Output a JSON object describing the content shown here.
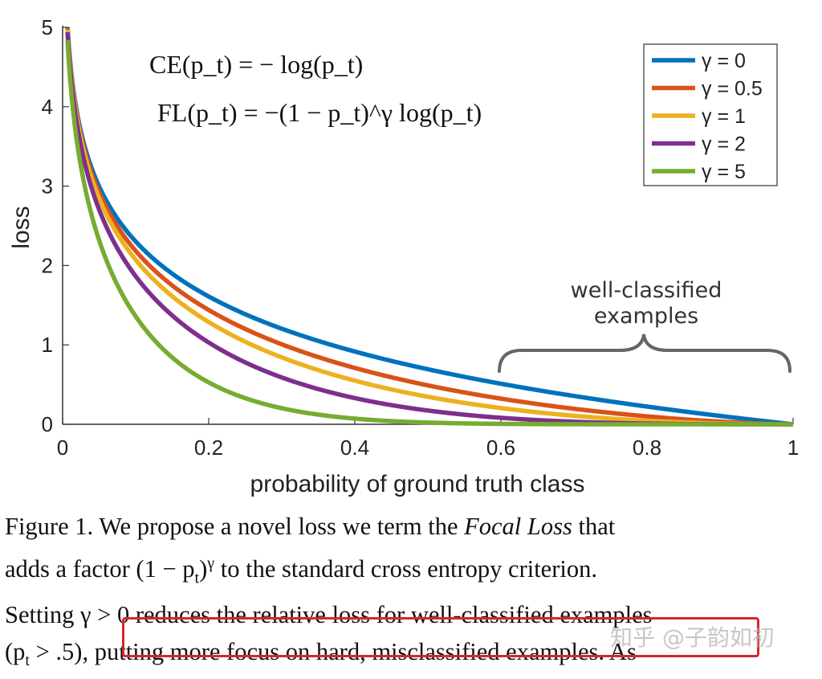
{
  "figure": {
    "equations": {
      "ce": "CE(p_t) = − log(p_t)",
      "fl": "FL(p_t) = −(1 − p_t)^γ log(p_t)"
    },
    "annotation": {
      "line1": "well-classified",
      "line2": "examples"
    }
  },
  "chart_data": {
    "type": "line",
    "xlabel": "probability of ground truth class",
    "ylabel": "loss",
    "xlim": [
      0,
      1
    ],
    "ylim": [
      0,
      5
    ],
    "x_ticks": [
      "0",
      "0.2",
      "0.4",
      "0.6",
      "0.8",
      "1"
    ],
    "y_ticks": [
      "0",
      "1",
      "2",
      "3",
      "4",
      "5"
    ],
    "legend_position": "top-right",
    "function": "FL(p) = -(1 - p)^gamma * log(p)",
    "series": [
      {
        "name": "γ = 0",
        "gamma": 0,
        "color": "#0072bd"
      },
      {
        "name": "γ = 0.5",
        "gamma": 0.5,
        "color": "#d95319"
      },
      {
        "name": "γ = 1",
        "gamma": 1,
        "color": "#edb120"
      },
      {
        "name": "γ = 2",
        "gamma": 2,
        "color": "#7e2f8e"
      },
      {
        "name": "γ = 5",
        "gamma": 5,
        "color": "#77ac30"
      }
    ],
    "sample_points": {
      "x": [
        0.05,
        0.1,
        0.2,
        0.4,
        0.6,
        0.8,
        1.0
      ],
      "gamma_0": [
        3.0,
        2.3,
        1.61,
        0.92,
        0.51,
        0.22,
        0.0
      ],
      "gamma_5": [
        2.32,
        1.36,
        0.53,
        0.07,
        0.01,
        0.0,
        0.0
      ]
    }
  },
  "caption": {
    "line1_a": "Figure 1. We propose a novel loss we term the ",
    "line1_em": "Focal Loss",
    "line1_b": " that",
    "line2_a": "adds a factor (1 − p",
    "line2_sub": "t",
    "line2_b": ")",
    "line2_sup": "γ",
    "line2_c": " to the standard cross entropy criterion.",
    "line3": "Setting γ > 0 reduces the relative loss for well-classified examples",
    "line4_a": "(p",
    "line4_sub": "t",
    "line4_b": " > .5), putting more focus on hard, misclassified examples. As"
  },
  "watermark": "知乎 @子韵如初",
  "highlight_color": "#d8262b"
}
